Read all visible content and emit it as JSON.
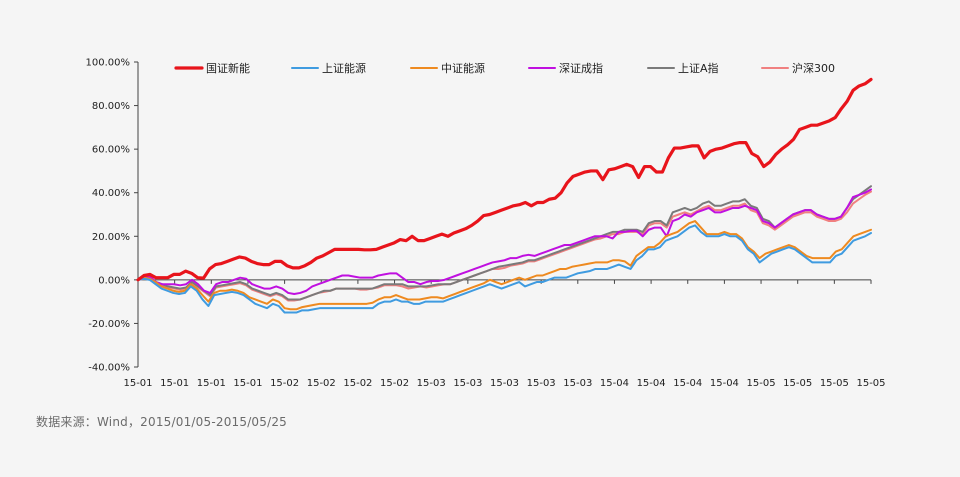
{
  "chart_data": {
    "type": "line",
    "title": "",
    "xlabel": "",
    "ylabel": "",
    "ylim": [
      -40,
      100
    ],
    "y_ticks": [
      -40,
      -20,
      0,
      20,
      40,
      60,
      80,
      100
    ],
    "y_tick_format": "percent_2dp",
    "x_tick_labels": [
      "15-01",
      "15-01",
      "15-01",
      "15-01",
      "15-02",
      "15-02",
      "15-02",
      "15-02",
      "15-03",
      "15-03",
      "15-03",
      "15-03",
      "15-03",
      "15-04",
      "15-04",
      "15-04",
      "15-04",
      "15-05",
      "15-05",
      "15-05",
      "15-05"
    ],
    "legend_position": "top",
    "grid": false,
    "series": [
      {
        "name": "国证新能",
        "color": "#e8141b",
        "width": 3.2,
        "values": [
          0,
          2,
          2.5,
          1,
          1,
          1,
          2.5,
          2.5,
          4,
          3,
          1,
          0.8,
          5,
          7,
          7.5,
          8.5,
          9.5,
          10.5,
          10,
          8.5,
          7.5,
          7,
          7,
          8.5,
          8.5,
          6.5,
          5.5,
          5.5,
          6.5,
          8,
          10,
          11,
          12.5,
          14,
          14,
          14,
          14,
          14,
          13.8,
          13.8,
          14,
          15,
          16,
          17,
          18.5,
          18,
          20,
          18,
          18,
          19,
          20,
          21,
          20,
          21.5,
          22.5,
          23.5,
          25,
          27,
          29.5,
          30,
          31,
          32,
          33,
          34,
          34.5,
          35.5,
          34,
          35.5,
          35.5,
          37,
          37.5,
          40,
          44.5,
          47.5,
          48.5,
          49.5,
          50,
          50,
          46,
          50.5,
          51,
          52,
          53,
          52,
          47,
          52,
          52,
          49.5,
          49.5,
          56,
          60.5,
          60.5,
          61,
          61.5,
          61.5,
          56,
          59,
          60,
          60.5,
          61.5,
          62.5,
          63,
          63,
          58,
          56.5,
          52,
          54,
          57.5,
          60,
          62,
          64.5,
          69,
          70,
          71,
          71,
          72,
          73,
          74.5,
          78.5,
          82,
          87,
          89,
          90,
          92
        ]
      },
      {
        "name": "上证能源",
        "color": "#3f9be0",
        "width": 2,
        "values": [
          0,
          0.5,
          0,
          -2,
          -4,
          -5,
          -6,
          -6.5,
          -6,
          -3,
          -5,
          -9,
          -12,
          -7,
          -6.5,
          -6,
          -5.5,
          -6,
          -7,
          -9,
          -11,
          -12,
          -13,
          -11,
          -12,
          -15,
          -15,
          -15,
          -14,
          -14,
          -13.5,
          -13,
          -13,
          -13,
          -13,
          -13,
          -13,
          -13,
          -13,
          -13,
          -13,
          -11,
          -10,
          -10,
          -9,
          -10,
          -10,
          -11,
          -11,
          -10,
          -10,
          -10,
          -10,
          -9,
          -8,
          -7,
          -6,
          -5,
          -4,
          -3,
          -2,
          -3,
          -4,
          -3,
          -2,
          -1,
          -3,
          -2,
          -1,
          -1,
          0,
          1,
          1,
          1,
          2,
          3,
          3.5,
          4,
          5,
          5,
          5,
          6,
          7,
          6,
          5,
          9,
          11,
          14,
          14,
          15,
          18,
          19,
          20,
          22,
          24,
          25,
          22,
          20,
          20,
          20,
          21,
          20,
          20,
          18,
          14,
          12,
          8,
          10,
          12,
          13,
          14,
          15,
          14,
          12,
          10,
          8,
          8,
          8,
          8,
          11,
          12,
          15,
          18,
          19,
          20,
          21.5
        ]
      },
      {
        "name": "中证能源",
        "color": "#ee8a20",
        "width": 2,
        "values": [
          0,
          1,
          0.5,
          -1,
          -3,
          -4,
          -5,
          -5.5,
          -5,
          -2,
          -4,
          -7,
          -10,
          -6,
          -5,
          -5,
          -4.5,
          -5,
          -6,
          -8,
          -9,
          -10,
          -11,
          -9,
          -10,
          -13,
          -13.5,
          -13.5,
          -12.5,
          -12,
          -11.5,
          -11,
          -11,
          -11,
          -11,
          -11,
          -11,
          -11,
          -11,
          -11,
          -10.5,
          -9,
          -8,
          -8,
          -7,
          -8,
          -9,
          -9,
          -9,
          -8.5,
          -8,
          -8,
          -8.5,
          -7.5,
          -6.5,
          -5.5,
          -4.5,
          -3.5,
          -2.5,
          -1.5,
          0,
          -1,
          -2,
          -1,
          0,
          1,
          0,
          1,
          2,
          2,
          3,
          4,
          5,
          5,
          6,
          6.5,
          7,
          7.5,
          8,
          8,
          8,
          9,
          9,
          8.5,
          6.5,
          11,
          13,
          15,
          15,
          17,
          20,
          21,
          22,
          24,
          26,
          27,
          24,
          21,
          21,
          21,
          22,
          21,
          21,
          19,
          15,
          13,
          10,
          12,
          13,
          14,
          15,
          16,
          15,
          13,
          11,
          10,
          10,
          10,
          10,
          13,
          14,
          17,
          20,
          21,
          22,
          23
        ]
      },
      {
        "name": "深证成指",
        "color": "#c010e0",
        "width": 2,
        "values": [
          0,
          1.5,
          1.5,
          -1,
          -2,
          -2,
          -2,
          -2.5,
          -2,
          0,
          -2,
          -5,
          -6,
          -2,
          -1,
          -1,
          0,
          1,
          0.5,
          -2,
          -3,
          -4,
          -4,
          -3,
          -4,
          -6,
          -6.5,
          -6,
          -5,
          -3,
          -2,
          -1,
          0,
          1,
          2,
          2,
          1.5,
          1,
          1,
          1,
          2,
          2.5,
          3,
          3,
          1,
          -1,
          -1,
          -2,
          -1,
          -0.5,
          -0.5,
          0,
          1,
          2,
          3,
          4,
          5,
          6,
          7,
          8,
          8.5,
          9,
          10,
          10,
          11,
          11.5,
          11,
          12,
          13,
          14,
          15,
          16,
          16,
          17,
          18,
          19,
          20,
          20,
          20,
          19,
          22,
          22,
          22.5,
          22.5,
          20,
          23,
          24,
          24,
          20,
          27,
          28,
          30,
          29,
          31,
          32,
          33,
          31,
          31,
          32,
          33,
          33,
          34,
          33,
          32,
          27,
          26,
          24,
          26,
          28,
          30,
          31,
          32,
          32,
          30,
          29,
          28,
          28,
          29,
          33,
          38,
          39,
          40,
          41.5
        ]
      },
      {
        "name": "上证A指",
        "color": "#7a7a7a",
        "width": 2,
        "values": [
          0,
          1,
          0.8,
          -1,
          -2,
          -3,
          -3.5,
          -4,
          -3.5,
          -1,
          -3,
          -5,
          -7,
          -3,
          -2.5,
          -2,
          -1.5,
          -1,
          -2,
          -4,
          -5,
          -6,
          -7,
          -6,
          -7,
          -9,
          -9,
          -9,
          -8,
          -7,
          -6,
          -5,
          -5,
          -4,
          -4,
          -4,
          -4,
          -4,
          -4,
          -4,
          -3,
          -2,
          -2,
          -2,
          -2,
          -3,
          -3,
          -3,
          -3,
          -2.5,
          -2,
          -2,
          -2,
          -1,
          0,
          1,
          2,
          3,
          4,
          5,
          6,
          6.5,
          7,
          7.5,
          8,
          9,
          9,
          10,
          11,
          12,
          13,
          14,
          15,
          16,
          17,
          18,
          19,
          20,
          21,
          22,
          22,
          23,
          23,
          23,
          22,
          26,
          27,
          27,
          25,
          31,
          32,
          33,
          32,
          33,
          35,
          36,
          34,
          34,
          35,
          36,
          36,
          37,
          34,
          33,
          28,
          27,
          24,
          26,
          28,
          30,
          31,
          32,
          32,
          30,
          29,
          28,
          28,
          29,
          33,
          37,
          39,
          41,
          43
        ]
      },
      {
        "name": "沪深300",
        "color": "#f08080",
        "width": 2,
        "values": [
          0,
          0.5,
          0.3,
          -1.5,
          -2.5,
          -3.5,
          -4,
          -4.5,
          -4,
          -1.5,
          -3.5,
          -5.5,
          -7.5,
          -3.5,
          -3,
          -2.5,
          -2,
          -1.5,
          -2.5,
          -4.5,
          -5.5,
          -6.5,
          -7.5,
          -6.5,
          -7.5,
          -9.5,
          -9.5,
          -9,
          -8,
          -7,
          -6,
          -5.5,
          -5,
          -4,
          -4,
          -4,
          -4,
          -4.5,
          -4.5,
          -4,
          -3.5,
          -2.5,
          -2.5,
          -2.5,
          -3,
          -4,
          -3.5,
          -3,
          -3.5,
          -3,
          -2.5,
          -2,
          -2,
          -1,
          0,
          1,
          2,
          3,
          4,
          5,
          5,
          5.5,
          6.5,
          7,
          7.5,
          8.5,
          8.5,
          9.5,
          10.5,
          11.5,
          12.5,
          13.5,
          14.5,
          15.5,
          16.5,
          17.5,
          18.5,
          19,
          20,
          21,
          21,
          22,
          22,
          22,
          21,
          25,
          26,
          26,
          24,
          29,
          30,
          31,
          30,
          31.5,
          33,
          34,
          32,
          32,
          33,
          34,
          34,
          35,
          32,
          31,
          26,
          25,
          23,
          25,
          27,
          29,
          30,
          31,
          31,
          29,
          28,
          27,
          27,
          28,
          31,
          35,
          37,
          39,
          40.5
        ]
      }
    ],
    "source_note": "数据来源：Wind，2015/01/05-2015/05/25"
  }
}
